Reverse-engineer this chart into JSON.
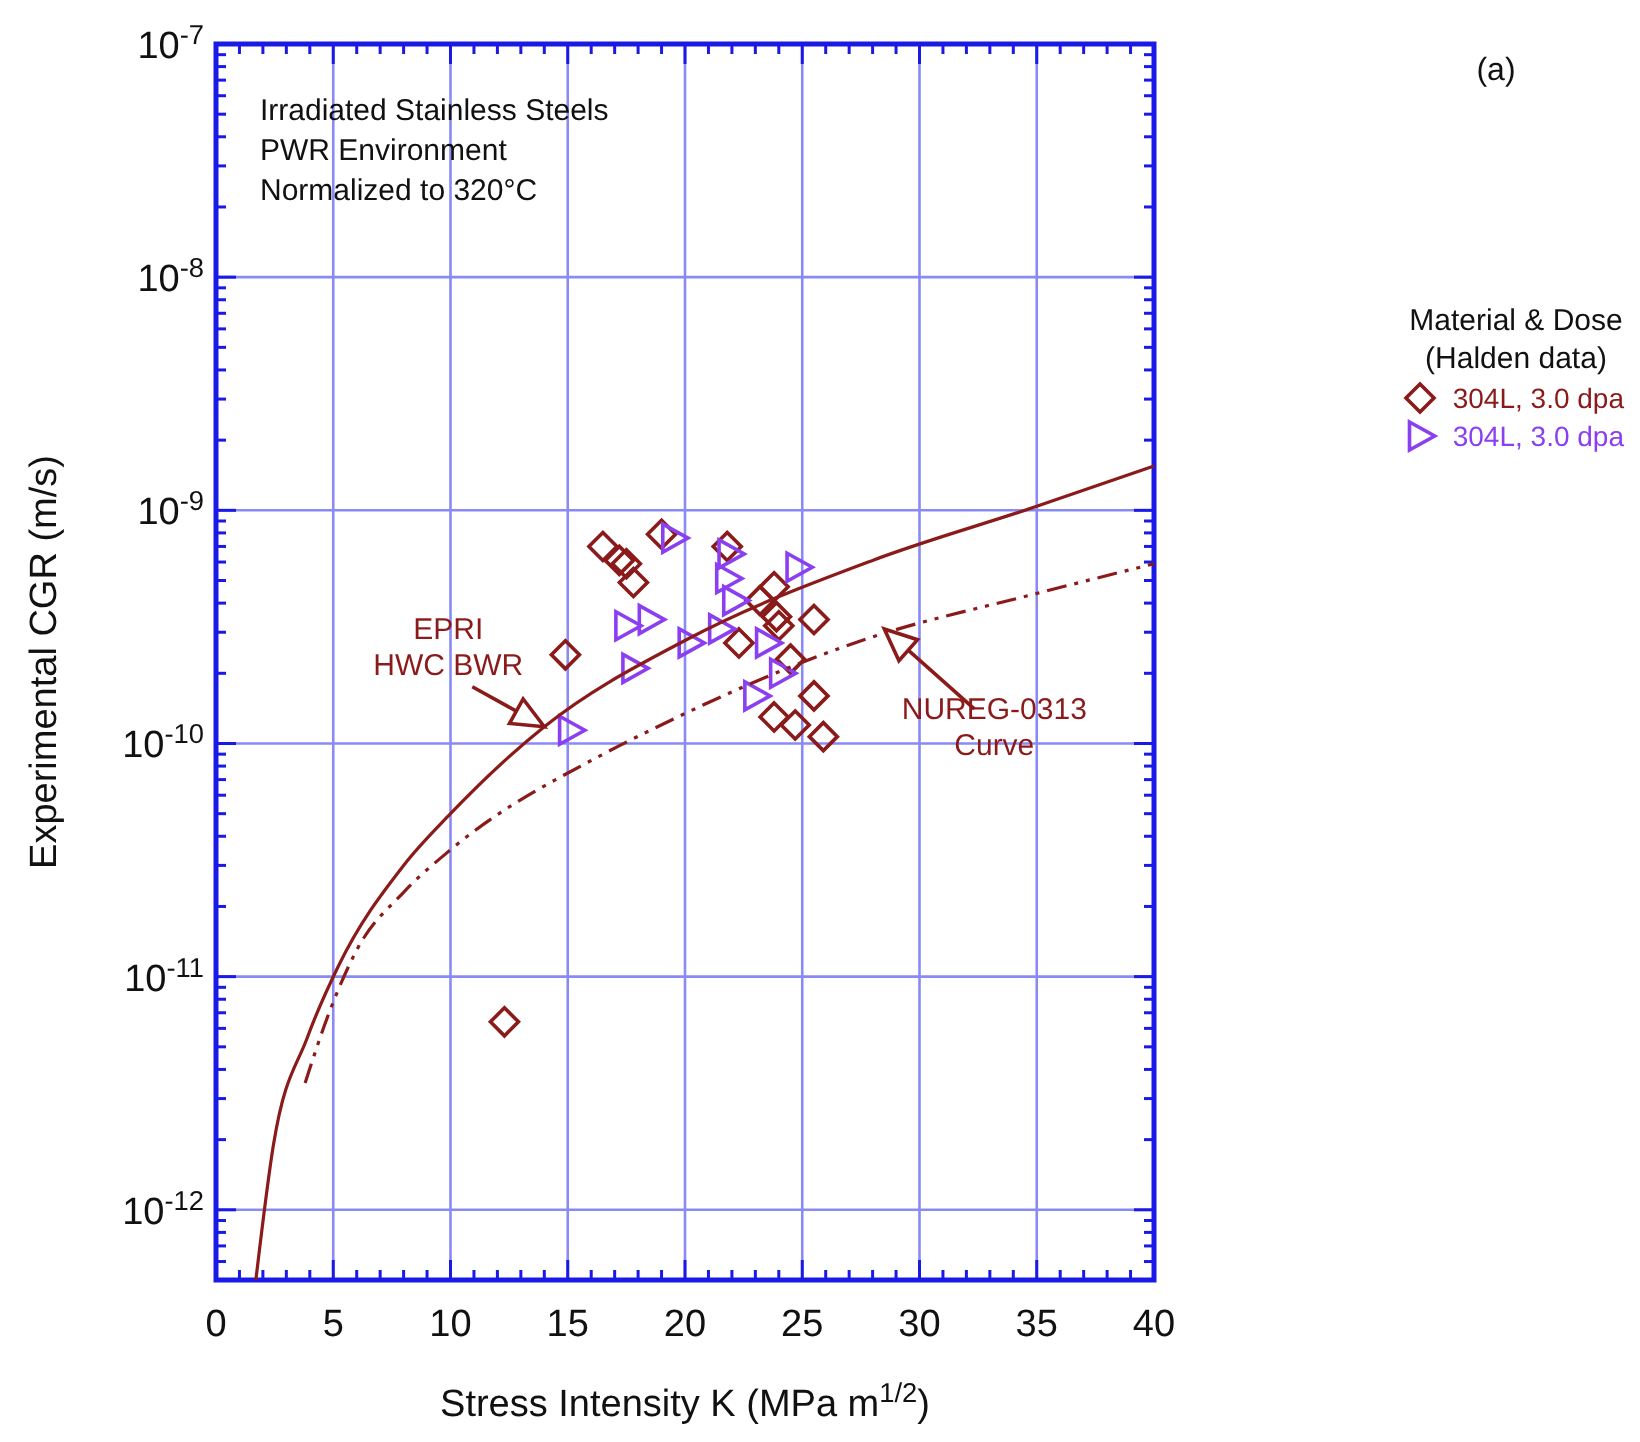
{
  "chart_data": {
    "type": "scatter",
    "title": "(a)",
    "xlabel": "Stress Intensity K (MPa m$^{1/2}$)",
    "ylabel": "Experimental CGR (m/s)",
    "legend_title": "Material & Dose\n(Halden data)",
    "log": "y",
    "grid": true,
    "legend": "right",
    "xlim": [
      0,
      40
    ],
    "ylim": [
      5e-13,
      1e-07
    ],
    "xticks": [
      0,
      {
        "value": 1,
        "label": null
      },
      {
        "value": 2,
        "label": null
      },
      {
        "value": 3,
        "label": null
      },
      {
        "value": 4,
        "label": null
      },
      5,
      {
        "value": 6,
        "label": null
      },
      {
        "value": 7,
        "label": null
      },
      {
        "value": 8,
        "label": null
      },
      {
        "value": 9,
        "label": null
      },
      10,
      {
        "value": 11,
        "label": null
      },
      {
        "value": 12,
        "label": null
      },
      {
        "value": 13,
        "label": null
      },
      {
        "value": 14,
        "label": null
      },
      15,
      {
        "value": 16,
        "label": null
      },
      {
        "value": 17,
        "label": null
      },
      {
        "value": 18,
        "label": null
      },
      {
        "value": 19,
        "label": null
      },
      20,
      {
        "value": 21,
        "label": null
      },
      {
        "value": 22,
        "label": null
      },
      {
        "value": 23,
        "label": null
      },
      {
        "value": 24,
        "label": null
      },
      25,
      {
        "value": 26,
        "label": null
      },
      {
        "value": 27,
        "label": null
      },
      {
        "value": 28,
        "label": null
      },
      {
        "value": 29,
        "label": null
      },
      30,
      {
        "value": 31,
        "label": null
      },
      {
        "value": 32,
        "label": null
      },
      {
        "value": 33,
        "label": null
      },
      {
        "value": 34,
        "label": null
      },
      35,
      {
        "value": 36,
        "label": null
      },
      {
        "value": 37,
        "label": null
      },
      {
        "value": 38,
        "label": null
      },
      {
        "value": 39,
        "label": null
      },
      40
    ],
    "yticks": [
      {
        "value": 5e-13,
        "label": null
      },
      {
        "value": 6e-13,
        "label": null
      },
      {
        "value": 7e-13,
        "label": null
      },
      {
        "value": 8e-13,
        "label": null
      },
      {
        "value": 9e-13,
        "label": null
      },
      {
        "value": 1e-12,
        "label": "10$^{-12}$"
      },
      {
        "value": 2e-12,
        "label": null
      },
      {
        "value": 3e-12,
        "label": null
      },
      {
        "value": 4e-12,
        "label": null
      },
      {
        "value": 5e-12,
        "label": null
      },
      {
        "value": 6e-12,
        "label": null
      },
      {
        "value": 7e-12,
        "label": null
      },
      {
        "value": 8e-12,
        "label": null
      },
      {
        "value": 9e-12,
        "label": null
      },
      {
        "value": 1e-11,
        "label": "10$^{-11}$"
      },
      {
        "value": 2e-11,
        "label": null
      },
      {
        "value": 3e-11,
        "label": null
      },
      {
        "value": 4e-11,
        "label": null
      },
      {
        "value": 5e-11,
        "label": null
      },
      {
        "value": 6e-11,
        "label": null
      },
      {
        "value": 7e-11,
        "label": null
      },
      {
        "value": 8e-11,
        "label": null
      },
      {
        "value": 9e-11,
        "label": null
      },
      {
        "value": 1e-10,
        "label": "10$^{-10}$"
      },
      {
        "value": 2e-10,
        "label": null
      },
      {
        "value": 3e-10,
        "label": null
      },
      {
        "value": 4e-10,
        "label": null
      },
      {
        "value": 5e-10,
        "label": null
      },
      {
        "value": 6e-10,
        "label": null
      },
      {
        "value": 7e-10,
        "label": null
      },
      {
        "value": 8e-10,
        "label": null
      },
      {
        "value": 9e-10,
        "label": null
      },
      {
        "value": 1e-09,
        "label": "10$^{-9}$"
      },
      {
        "value": 2e-09,
        "label": null
      },
      {
        "value": 3e-09,
        "label": null
      },
      {
        "value": 4e-09,
        "label": null
      },
      {
        "value": 5e-09,
        "label": null
      },
      {
        "value": 6e-09,
        "label": null
      },
      {
        "value": 7e-09,
        "label": null
      },
      {
        "value": 8e-09,
        "label": null
      },
      {
        "value": 9e-09,
        "label": null
      },
      {
        "value": 1e-08,
        "label": "10$^{-8}$"
      },
      {
        "value": 2e-08,
        "label": null
      },
      {
        "value": 3e-08,
        "label": null
      },
      {
        "value": 4e-08,
        "label": null
      },
      {
        "value": 5e-08,
        "label": null
      },
      {
        "value": 6e-08,
        "label": null
      },
      {
        "value": 7e-08,
        "label": null
      },
      {
        "value": 8e-08,
        "label": null
      },
      {
        "value": 9e-08,
        "label": null
      },
      {
        "value": 1e-07,
        "label": "10$^{-7}$"
      }
    ],
    "series": [
      {
        "name": "304L, 3.0 dpa",
        "marker": "diamond",
        "color": "#8b1a1a",
        "x": [
          16.5,
          17.2,
          17.5,
          17.8,
          19.0,
          14.9,
          21.8,
          23.8,
          23.2,
          23.9,
          24.0,
          25.5,
          22.3,
          24.5,
          25.5,
          23.8,
          24.7,
          25.9,
          12.3
        ],
        "values": [
          7e-10,
          6.1e-10,
          5.9e-10,
          4.9e-10,
          7.9e-10,
          2.4e-10,
          7e-10,
          4.7e-10,
          4.1e-10,
          3.5e-10,
          3.2e-10,
          3.4e-10,
          2.7e-10,
          2.3e-10,
          1.6e-10,
          1.3e-10,
          1.2e-10,
          1.07e-10,
          6.4e-12
        ]
      },
      {
        "name": "304L, 3.0 dpa",
        "marker": "triangle",
        "color": "#8a3ff0",
        "x": [
          19.5,
          21.9,
          21.8,
          22.1,
          24.8,
          17.5,
          18.5,
          20.2,
          21.5,
          23.5,
          17.8,
          24.1,
          23.0,
          15.1
        ],
        "values": [
          7.6e-10,
          6.5e-10,
          5.1e-10,
          4.1e-10,
          5.7e-10,
          3.2e-10,
          3.4e-10,
          2.7e-10,
          3.1e-10,
          2.7e-10,
          2.1e-10,
          2e-10,
          1.6e-10,
          1.14e-10
        ]
      },
      {
        "type": "line",
        "marker": "none",
        "line_style": "solid",
        "color": "#8b1a1a",
        "x": [
          1.7,
          2.45,
          3.9,
          5.2,
          8,
          10,
          14,
          20.1,
          28,
          35,
          40
        ],
        "values": [
          5e-13,
          1.9e-12,
          5.5e-12,
          1.1e-11,
          3e-11,
          5e-11,
          1.18e-10,
          2.8e-10,
          6.1e-10,
          1.04e-09,
          1.55e-09
        ]
      },
      {
        "type": "line",
        "marker": "none",
        "line_style": "dashed",
        "color": "#8b1a1a",
        "x": [
          3.8,
          4.8,
          6,
          8,
          10,
          16.6,
          18.6,
          27.7,
          35,
          40
        ],
        "values": [
          3.5e-12,
          6.9e-12,
          1.3e-11,
          2.3e-11,
          3.5e-11,
          9.1e-11,
          1.15e-10,
          2.8e-10,
          4.4e-10,
          5.9e-10
        ]
      }
    ],
    "annotations": [
      "Irradiated Stainless Steels",
      "PWR Environment",
      "Normalized to 320°C",
      {
        "text": "EPRI\nHWC BWR",
        "x": 14,
        "y": 1.18e-10
      },
      {
        "text": "NUREG-0313\nCurve",
        "x": 28.5,
        "y": 3.1e-10
      }
    ]
  }
}
